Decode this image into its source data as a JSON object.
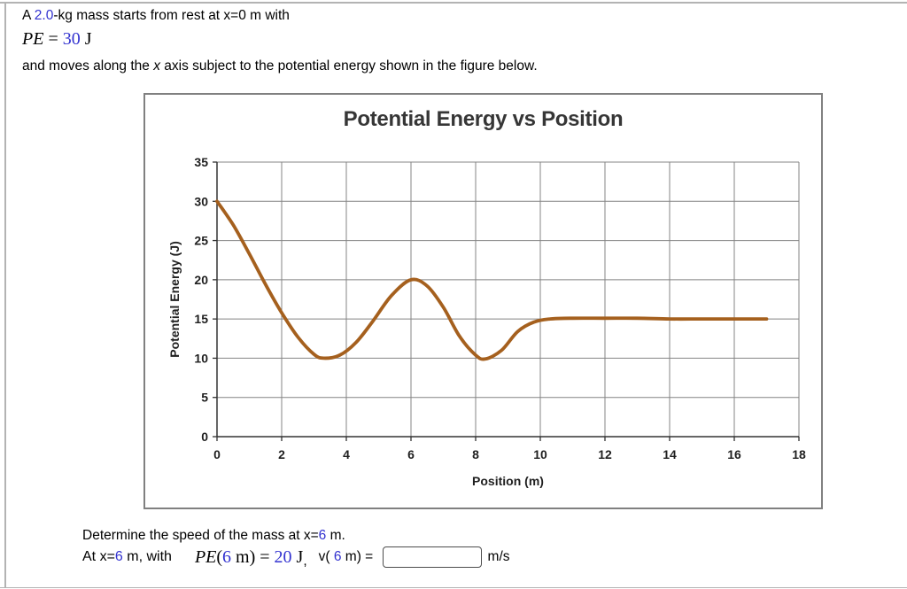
{
  "colors": {
    "accent-blue": "#3232d0",
    "page-border": "#b3b3b3",
    "figure-border": "#808080"
  },
  "problem": {
    "line1_prefix": "A ",
    "line1_mass": "2.0",
    "line1_suffix": "-kg mass starts from rest at x=0 m with",
    "pe": {
      "lhs": "PE",
      "eq": " = ",
      "value": "30",
      "unit": " J"
    },
    "line3_a": "and moves along the ",
    "line3_x": "x",
    "line3_b": " axis subject to the potential energy shown in the figure below."
  },
  "chart_data": {
    "type": "line",
    "title": "Potential Energy vs Position",
    "xlabel": "Position (m)",
    "ylabel": "Potential Energy (J)",
    "xlim": [
      0,
      18
    ],
    "ylim": [
      0,
      35
    ],
    "xticks": [
      0,
      2,
      4,
      6,
      8,
      10,
      12,
      14,
      16,
      18
    ],
    "yticks": [
      0,
      5,
      10,
      15,
      20,
      25,
      30,
      35
    ],
    "grid": true,
    "legend": "none",
    "grid_color": "#848484",
    "axis_color": "#333333",
    "line_color": "#a5601e",
    "series": [
      {
        "name": "Potential Energy",
        "x": [
          0,
          0.5,
          1,
          1.5,
          2,
          2.5,
          3,
          3.3,
          3.8,
          4.3,
          4.8,
          5.4,
          6,
          6.5,
          7,
          7.5,
          8,
          8.3,
          8.8,
          9.3,
          9.8,
          10.3,
          11,
          12,
          13,
          14,
          15,
          16,
          17
        ],
        "y": [
          30,
          27,
          23.3,
          19.4,
          15.8,
          12.7,
          10.5,
          10,
          10.4,
          12,
          14.6,
          18,
          20,
          19.2,
          16.5,
          12.8,
          10.4,
          9.9,
          11,
          13.4,
          14.6,
          15,
          15.1,
          15.1,
          15.1,
          15,
          15,
          15,
          15
        ]
      }
    ]
  },
  "question": {
    "determine_prefix": "Determine the speed of the mass at x=",
    "determine_value": "6",
    "determine_suffix": " m.",
    "at_prefix": "At x=",
    "at_value": "6",
    "at_suffix": " m, with",
    "pe6": {
      "lhs": "PE",
      "open": "(",
      "arg": "6",
      "after_arg": " m)",
      "eq": " = ",
      "value": "20",
      "unit": " J"
    },
    "comma": ",",
    "v_prefix": "v( ",
    "v_value": "6",
    "v_suffix": " m) = ",
    "answer_value": "",
    "answer_unit": "m/s"
  }
}
